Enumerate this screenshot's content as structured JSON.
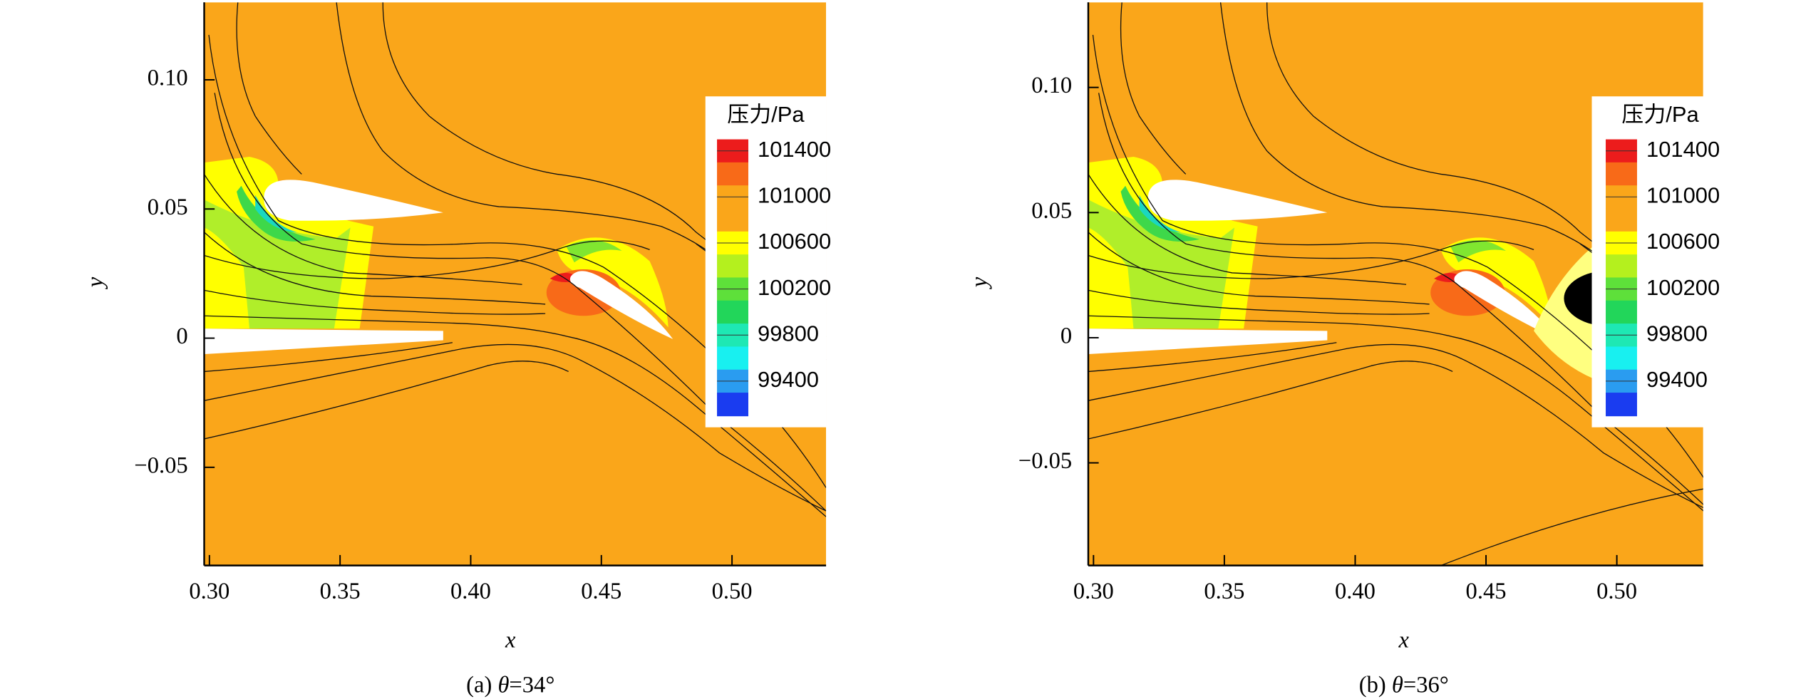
{
  "chart_data": [
    {
      "type": "contour",
      "caption": [
        "(a) ",
        "θ",
        "=34°"
      ],
      "xlabel": "x",
      "ylabel": "y",
      "xlim": [
        0.298,
        0.536
      ],
      "ylim": [
        -0.088,
        0.13
      ],
      "xticks": [
        {
          "value": 0.3,
          "label": "0.30"
        },
        0.35,
        {
          "value": 0.4,
          "label": "0.40"
        },
        0.45,
        {
          "value": 0.5,
          "label": "0.50"
        }
      ],
      "yticks": [
        {
          "value": -0.05,
          "label": "−0.05"
        },
        0,
        0.05,
        {
          "value": 0.1,
          "label": "0.10"
        }
      ],
      "colorbar": {
        "title": "压力/Pa",
        "clim": [
          99100,
          101500
        ],
        "ticks": [
          101400,
          101000,
          100600,
          100200,
          99800,
          99400
        ],
        "colors": [
          "#ec1c1c",
          "#f86a18",
          "#faa61a",
          "#faa61a",
          "#ffff00",
          "#b4f01e",
          "#5ee03a",
          "#22d65a",
          "#1ee8b4",
          "#18f0f0",
          "#2a9cf0",
          "#1a3cf0"
        ]
      }
    },
    {
      "type": "contour",
      "caption": [
        "(b) ",
        "θ",
        "=36°"
      ],
      "xlabel": "x",
      "ylabel": "y",
      "xlim": [
        0.298,
        0.533
      ],
      "ylim": [
        -0.091,
        0.134
      ],
      "xticks": [
        {
          "value": 0.3,
          "label": "0.30"
        },
        0.35,
        {
          "value": 0.4,
          "label": "0.40"
        },
        0.45,
        {
          "value": 0.5,
          "label": "0.50"
        }
      ],
      "yticks": [
        {
          "value": -0.05,
          "label": "−0.05"
        },
        0,
        0.05,
        {
          "value": 0.1,
          "label": "0.10"
        }
      ],
      "colorbar": {
        "title": "压力/Pa",
        "clim": [
          99100,
          101500
        ],
        "ticks": [
          101400,
          101000,
          100600,
          100200,
          99800,
          99400
        ],
        "colors": [
          "#ec1c1c",
          "#f86a18",
          "#faa61a",
          "#faa61a",
          "#ffff00",
          "#b4f01e",
          "#5ee03a",
          "#22d65a",
          "#1ee8b4",
          "#18f0f0",
          "#2a9cf0",
          "#1a3cf0"
        ]
      }
    }
  ]
}
